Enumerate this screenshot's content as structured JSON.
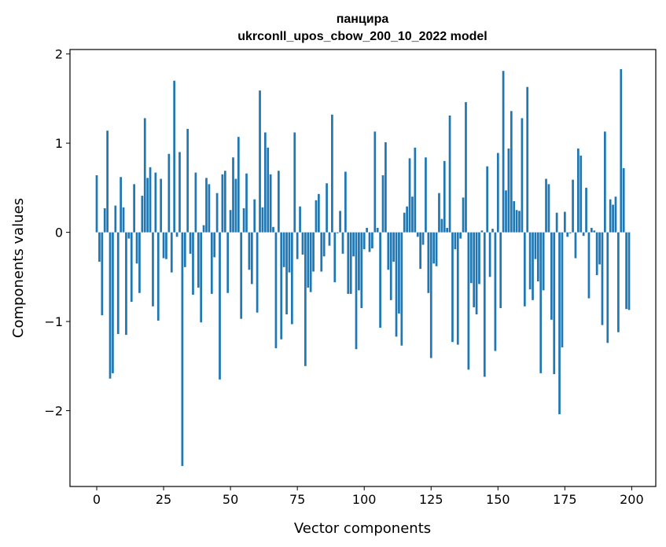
{
  "chart_data": {
    "type": "bar",
    "title": "панцира",
    "subtitle": "ukrconll_upos_cbow_200_10_2022 model",
    "xlabel": "Vector components",
    "ylabel": "Components values",
    "xlim": [
      -10,
      209
    ],
    "ylim": [
      -2.85,
      2.05
    ],
    "xticks": [
      0,
      25,
      50,
      75,
      100,
      125,
      150,
      175,
      200
    ],
    "yticks": [
      2,
      1,
      0,
      -1,
      -2
    ],
    "ytick_labels": [
      "2",
      "1",
      "0",
      "−1",
      "−2"
    ],
    "bar_color": "#1f77b4",
    "grid": false,
    "values": [
      0.64,
      -0.33,
      -0.93,
      0.27,
      1.14,
      -1.64,
      -1.58,
      0.3,
      -1.14,
      0.62,
      0.28,
      -1.15,
      -0.07,
      -0.78,
      0.54,
      -0.35,
      -0.68,
      0.41,
      1.28,
      0.61,
      0.73,
      -0.83,
      0.67,
      -0.99,
      0.6,
      -0.29,
      -0.3,
      0.88,
      -0.45,
      1.7,
      -0.05,
      0.9,
      -2.62,
      -0.39,
      1.16,
      -0.24,
      -0.7,
      0.67,
      -0.62,
      -1.01,
      0.08,
      0.61,
      0.54,
      -0.69,
      -0.28,
      0.44,
      -1.65,
      0.65,
      0.69,
      -0.68,
      0.25,
      0.84,
      0.6,
      1.07,
      -0.97,
      0.27,
      0.66,
      -0.42,
      -0.58,
      0.37,
      -0.9,
      1.59,
      0.28,
      1.12,
      0.95,
      0.65,
      0.06,
      -1.3,
      0.69,
      -1.2,
      -0.39,
      -0.92,
      -0.45,
      -1.03,
      1.12,
      -0.3,
      0.29,
      -0.25,
      -1.5,
      -0.62,
      -0.67,
      -0.44,
      0.36,
      0.43,
      -0.44,
      -0.27,
      0.55,
      -0.15,
      1.32,
      -0.56,
      -0.01,
      0.24,
      -0.24,
      0.68,
      -0.69,
      -0.69,
      -0.27,
      -1.31,
      -0.65,
      -0.85,
      -0.19,
      0.05,
      -0.22,
      -0.18,
      1.13,
      0.05,
      -1.07,
      0.64,
      1.01,
      -0.42,
      -0.76,
      -0.33,
      -1.17,
      -0.91,
      -1.27,
      0.22,
      0.29,
      0.83,
      0.4,
      0.95,
      -0.05,
      -0.41,
      -0.14,
      0.84,
      -0.68,
      -1.41,
      -0.35,
      -0.38,
      0.44,
      0.15,
      0.8,
      0.05,
      1.31,
      -1.23,
      -0.19,
      -1.26,
      -0.07,
      0.39,
      1.46,
      -1.54,
      -0.57,
      -0.84,
      -0.92,
      -0.58,
      0.02,
      -1.62,
      0.74,
      -0.5,
      0.04,
      -1.33,
      0.89,
      -0.85,
      1.81,
      0.47,
      0.94,
      1.36,
      0.35,
      0.25,
      0.24,
      1.28,
      -0.83,
      1.63,
      -0.64,
      -0.76,
      -0.3,
      -0.55,
      -1.58,
      -0.65,
      0.6,
      0.54,
      -0.98,
      -1.59,
      0.22,
      -2.04,
      -1.29,
      0.23,
      -0.05,
      -0.01,
      0.59,
      -0.29,
      0.94,
      0.86,
      -0.04,
      0.5,
      -0.74,
      0.05,
      0.02,
      -0.48,
      -0.36,
      -1.04,
      1.13,
      -1.24,
      0.37,
      0.31,
      0.4,
      -1.12,
      1.83,
      0.72,
      -0.86,
      -0.87
    ]
  }
}
